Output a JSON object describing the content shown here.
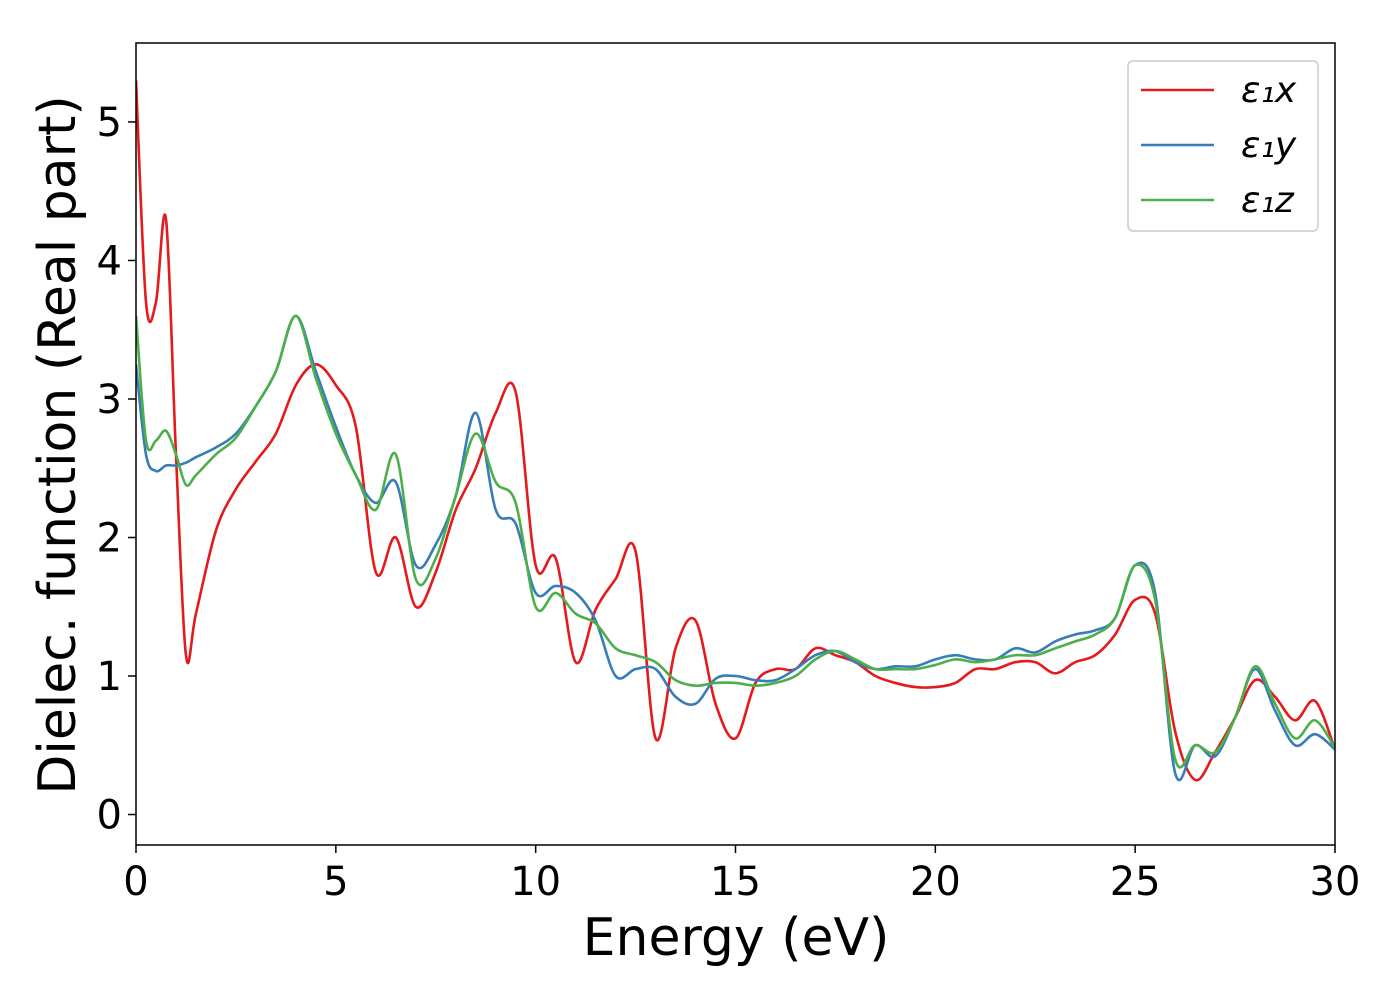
{
  "chart_data": {
    "type": "line",
    "xlabel": "Energy (eV)",
    "ylabel": "Dielec. function (Real part)",
    "x": [
      0,
      0.25,
      0.5,
      0.75,
      1,
      1.25,
      1.5,
      2,
      2.5,
      3,
      3.5,
      4,
      4.5,
      5,
      5.5,
      6,
      6.5,
      7,
      7.5,
      8,
      8.5,
      9,
      9.5,
      10,
      10.5,
      11,
      11.5,
      12,
      12.5,
      13,
      13.5,
      14,
      14.5,
      15,
      15.5,
      16,
      16.5,
      17,
      17.5,
      18,
      18.5,
      19,
      19.5,
      20,
      20.5,
      21,
      21.5,
      22,
      22.5,
      23,
      23.5,
      24,
      24.5,
      25,
      25.5,
      26,
      26.5,
      27,
      27.5,
      28,
      28.5,
      29,
      29.5,
      30
    ],
    "series": [
      {
        "name": "ε₁x",
        "color": "#e41a1c",
        "values": [
          5.3,
          3.7,
          3.7,
          4.3,
          2.6,
          1.15,
          1.45,
          2.05,
          2.35,
          2.55,
          2.75,
          3.1,
          3.25,
          3.1,
          2.8,
          1.75,
          2.0,
          1.5,
          1.75,
          2.2,
          2.5,
          2.9,
          3.05,
          1.8,
          1.85,
          1.1,
          1.48,
          1.7,
          1.9,
          0.55,
          1.2,
          1.4,
          0.8,
          0.55,
          0.95,
          1.05,
          1.05,
          1.2,
          1.15,
          1.1,
          1.0,
          0.95,
          0.92,
          0.92,
          0.95,
          1.05,
          1.05,
          1.1,
          1.1,
          1.02,
          1.1,
          1.15,
          1.3,
          1.55,
          1.45,
          0.6,
          0.25,
          0.45,
          0.7,
          0.97,
          0.85,
          0.68,
          0.82,
          0.47
        ]
      },
      {
        "name": "ε₁y",
        "color": "#377eb8",
        "values": [
          3.25,
          2.6,
          2.48,
          2.52,
          2.52,
          2.54,
          2.58,
          2.65,
          2.75,
          2.95,
          3.2,
          3.6,
          3.2,
          2.8,
          2.45,
          2.25,
          2.4,
          1.8,
          1.95,
          2.3,
          2.9,
          2.2,
          2.1,
          1.6,
          1.65,
          1.6,
          1.4,
          1.0,
          1.05,
          1.05,
          0.85,
          0.8,
          0.98,
          1.0,
          0.97,
          0.97,
          1.05,
          1.15,
          1.18,
          1.1,
          1.05,
          1.07,
          1.07,
          1.12,
          1.15,
          1.12,
          1.12,
          1.2,
          1.17,
          1.25,
          1.3,
          1.33,
          1.42,
          1.8,
          1.6,
          0.3,
          0.5,
          0.42,
          0.7,
          1.05,
          0.75,
          0.5,
          0.58,
          0.47
        ]
      },
      {
        "name": "ε₁z",
        "color": "#4daf4a",
        "values": [
          3.6,
          2.7,
          2.7,
          2.77,
          2.6,
          2.38,
          2.45,
          2.6,
          2.72,
          2.95,
          3.2,
          3.6,
          3.15,
          2.75,
          2.45,
          2.2,
          2.6,
          1.7,
          1.85,
          2.3,
          2.75,
          2.4,
          2.25,
          1.5,
          1.6,
          1.45,
          1.38,
          1.2,
          1.15,
          1.1,
          0.97,
          0.93,
          0.95,
          0.95,
          0.93,
          0.95,
          1.0,
          1.12,
          1.18,
          1.12,
          1.05,
          1.05,
          1.05,
          1.08,
          1.12,
          1.1,
          1.12,
          1.15,
          1.15,
          1.2,
          1.25,
          1.3,
          1.42,
          1.8,
          1.55,
          0.4,
          0.5,
          0.45,
          0.7,
          1.07,
          0.8,
          0.55,
          0.68,
          0.48
        ]
      }
    ],
    "xlim": [
      0,
      30
    ],
    "ylim": [
      -0.22,
      5.57
    ],
    "xticks": [
      0,
      5,
      10,
      15,
      20,
      25,
      30
    ],
    "yticks": [
      0,
      1,
      2,
      3,
      4,
      5
    ],
    "grid": false,
    "legend": "upper right"
  }
}
